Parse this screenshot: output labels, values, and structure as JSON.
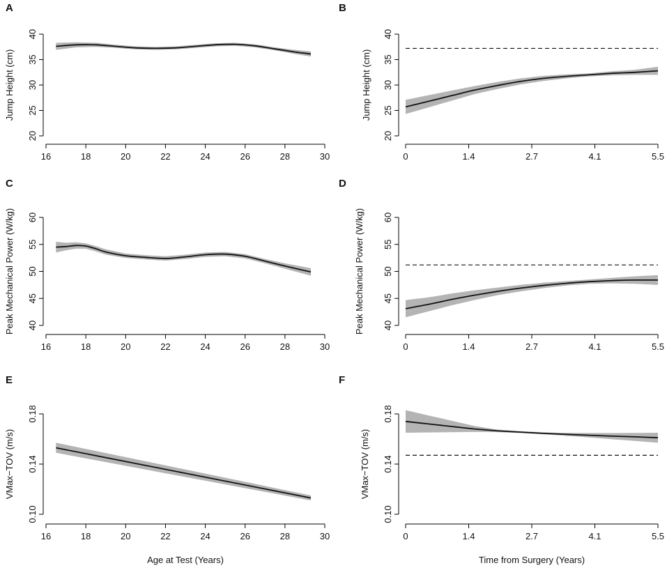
{
  "chart_data": [
    {
      "panel": "A",
      "type": "line",
      "xlabel": "",
      "ylabel": "Jump Height (cm)",
      "xlim": [
        16,
        30
      ],
      "ylim": [
        20,
        40
      ],
      "xticks": [
        16,
        18,
        20,
        22,
        24,
        26,
        28,
        30
      ],
      "xtick_labels": [
        "16",
        "18",
        "20",
        "22",
        "24",
        "26",
        "28",
        "30"
      ],
      "yticks": [
        20,
        25,
        30,
        35,
        40
      ],
      "ytick_labels": [
        "20",
        "25",
        "30",
        "35",
        "40"
      ],
      "reference_line": null,
      "series": [
        {
          "name": "fit",
          "x": [
            16.5,
            17.5,
            18.5,
            19.5,
            20.5,
            21.5,
            22.5,
            23.5,
            24.5,
            25.5,
            26.5,
            27.5,
            28.5,
            29.3
          ],
          "y": [
            37.6,
            37.9,
            37.9,
            37.6,
            37.3,
            37.2,
            37.3,
            37.6,
            37.9,
            38.0,
            37.7,
            37.1,
            36.5,
            36.1
          ],
          "lower": [
            36.9,
            37.4,
            37.5,
            37.3,
            37.0,
            36.9,
            37.0,
            37.3,
            37.6,
            37.7,
            37.4,
            36.8,
            36.1,
            35.6
          ],
          "upper": [
            38.3,
            38.4,
            38.3,
            37.9,
            37.6,
            37.5,
            37.6,
            37.9,
            38.2,
            38.3,
            38.0,
            37.4,
            36.9,
            36.6
          ]
        }
      ]
    },
    {
      "panel": "B",
      "type": "line",
      "xlabel": "",
      "ylabel": "Jump Height (cm)",
      "xlim": [
        0,
        5.5
      ],
      "ylim": [
        20,
        40
      ],
      "xticks": [
        0,
        1.375,
        2.75,
        4.125,
        5.5
      ],
      "xtick_labels": [
        "0",
        "1.4",
        "2.7",
        "4.1",
        "5.5"
      ],
      "yticks": [
        20,
        25,
        30,
        35,
        40
      ],
      "ytick_labels": [
        "20",
        "25",
        "30",
        "35",
        "40"
      ],
      "reference_line": 37.2,
      "series": [
        {
          "name": "fit",
          "x": [
            0,
            0.5,
            1.0,
            1.5,
            2.0,
            2.5,
            3.0,
            3.5,
            4.0,
            4.5,
            5.0,
            5.5
          ],
          "y": [
            25.7,
            26.8,
            27.9,
            29.0,
            29.9,
            30.7,
            31.3,
            31.7,
            32.0,
            32.3,
            32.5,
            32.8
          ],
          "lower": [
            24.3,
            25.6,
            26.9,
            28.2,
            29.2,
            30.1,
            30.8,
            31.3,
            31.7,
            31.9,
            32.0,
            32.0
          ],
          "upper": [
            27.1,
            28.0,
            28.9,
            29.8,
            30.6,
            31.3,
            31.8,
            32.1,
            32.3,
            32.7,
            33.0,
            33.6
          ]
        }
      ]
    },
    {
      "panel": "C",
      "type": "line",
      "xlabel": "",
      "ylabel": "Peak Mechanical Power (W/kg)",
      "xlim": [
        16,
        30
      ],
      "ylim": [
        40,
        60
      ],
      "xticks": [
        16,
        18,
        20,
        22,
        24,
        26,
        28,
        30
      ],
      "xtick_labels": [
        "16",
        "18",
        "20",
        "22",
        "24",
        "26",
        "28",
        "30"
      ],
      "yticks": [
        40,
        45,
        50,
        55,
        60
      ],
      "ytick_labels": [
        "40",
        "45",
        "50",
        "55",
        "60"
      ],
      "reference_line": null,
      "series": [
        {
          "name": "fit",
          "x": [
            16.5,
            17.0,
            17.5,
            18.0,
            18.5,
            19.0,
            20.0,
            21.0,
            22.0,
            23.0,
            24.0,
            25.0,
            26.0,
            27.0,
            28.0,
            29.3
          ],
          "y": [
            54.5,
            54.6,
            54.8,
            54.7,
            54.2,
            53.6,
            52.9,
            52.6,
            52.4,
            52.7,
            53.1,
            53.2,
            52.8,
            51.9,
            51.0,
            49.9
          ],
          "lower": [
            53.5,
            53.9,
            54.2,
            54.2,
            53.7,
            53.1,
            52.5,
            52.2,
            52.0,
            52.3,
            52.7,
            52.8,
            52.4,
            51.5,
            50.5,
            49.2
          ],
          "upper": [
            55.5,
            55.3,
            55.4,
            55.2,
            54.7,
            54.1,
            53.3,
            53.0,
            52.8,
            53.1,
            53.5,
            53.6,
            53.2,
            52.3,
            51.5,
            50.6
          ]
        }
      ]
    },
    {
      "panel": "D",
      "type": "line",
      "xlabel": "",
      "ylabel": "Peak Mechanical Power (W/kg)",
      "xlim": [
        0,
        5.5
      ],
      "ylim": [
        40,
        60
      ],
      "xticks": [
        0,
        1.375,
        2.75,
        4.125,
        5.5
      ],
      "xtick_labels": [
        "0",
        "1.4",
        "2.7",
        "4.1",
        "5.5"
      ],
      "yticks": [
        40,
        45,
        50,
        55,
        60
      ],
      "ytick_labels": [
        "40",
        "45",
        "50",
        "55",
        "60"
      ],
      "reference_line": 51.2,
      "series": [
        {
          "name": "fit",
          "x": [
            0,
            0.5,
            1.0,
            1.5,
            2.0,
            2.5,
            3.0,
            3.5,
            4.0,
            4.5,
            5.0,
            5.5
          ],
          "y": [
            43.1,
            43.9,
            44.8,
            45.6,
            46.3,
            46.9,
            47.4,
            47.8,
            48.1,
            48.3,
            48.4,
            48.4
          ],
          "lower": [
            41.5,
            42.6,
            43.7,
            44.7,
            45.6,
            46.3,
            46.9,
            47.4,
            47.7,
            47.8,
            47.7,
            47.5
          ],
          "upper": [
            44.7,
            45.2,
            45.9,
            46.5,
            47.0,
            47.5,
            47.9,
            48.2,
            48.5,
            48.8,
            49.1,
            49.3
          ]
        }
      ]
    },
    {
      "panel": "E",
      "type": "line",
      "xlabel": "Age at Test (Years)",
      "ylabel": "VMax−TOV (m/s)",
      "xlim": [
        16,
        30
      ],
      "ylim": [
        0.1,
        0.18
      ],
      "xticks": [
        16,
        18,
        20,
        22,
        24,
        26,
        28,
        30
      ],
      "xtick_labels": [
        "16",
        "18",
        "20",
        "22",
        "24",
        "26",
        "28",
        "30"
      ],
      "yticks": [
        0.1,
        0.14,
        0.18
      ],
      "ytick_labels": [
        "0.10",
        "0.14",
        "0.18"
      ],
      "reference_line": null,
      "series": [
        {
          "name": "fit",
          "x": [
            16.5,
            29.3
          ],
          "y": [
            0.153,
            0.113
          ],
          "lower": [
            0.149,
            0.111
          ],
          "upper": [
            0.157,
            0.115
          ]
        }
      ]
    },
    {
      "panel": "F",
      "type": "line",
      "xlabel": "Time from Surgery (Years)",
      "ylabel": "VMax−TOV (m/s)",
      "xlim": [
        0,
        5.5
      ],
      "ylim": [
        0.1,
        0.18
      ],
      "xticks": [
        0,
        1.375,
        2.75,
        4.125,
        5.5
      ],
      "xtick_labels": [
        "0",
        "1.4",
        "2.7",
        "4.1",
        "5.5"
      ],
      "yticks": [
        0.1,
        0.14,
        0.18
      ],
      "ytick_labels": [
        "0.10",
        "0.14",
        "0.18"
      ],
      "reference_line": 0.147,
      "series": [
        {
          "name": "fit",
          "x": [
            0,
            0.5,
            1.0,
            1.5,
            2.0,
            2.5,
            3.0,
            3.5,
            4.0,
            4.5,
            5.0,
            5.5
          ],
          "y": [
            0.174,
            0.172,
            0.17,
            0.168,
            0.1665,
            0.1655,
            0.1645,
            0.1637,
            0.163,
            0.1623,
            0.1617,
            0.161
          ],
          "lower": [
            0.165,
            0.1652,
            0.1654,
            0.1656,
            0.1655,
            0.1648,
            0.1637,
            0.1625,
            0.1612,
            0.1598,
            0.1585,
            0.157
          ],
          "upper": [
            0.183,
            0.1788,
            0.1746,
            0.1704,
            0.1675,
            0.1662,
            0.1653,
            0.1649,
            0.1648,
            0.1648,
            0.1649,
            0.165
          ]
        }
      ]
    }
  ]
}
